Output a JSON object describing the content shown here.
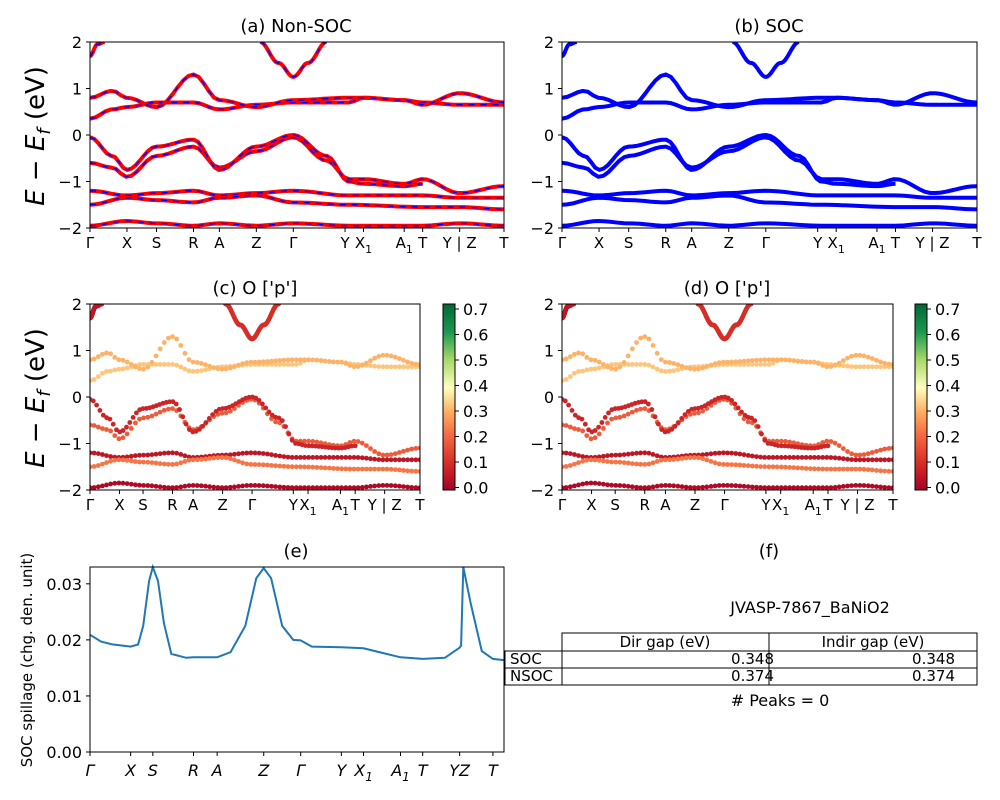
{
  "figure": {
    "ylabel_main": "E − E_f (eV)",
    "ylabel_main_parts": {
      "base": "E − E",
      "sub": "f",
      "unit": " (eV)"
    }
  },
  "band_ticks": [
    {
      "label": "Γ",
      "x": 0
    },
    {
      "label": "X",
      "x": 0.5
    },
    {
      "label": "S",
      "x": 0.9
    },
    {
      "label": "R",
      "x": 1.4
    },
    {
      "label": "A",
      "x": 1.75
    },
    {
      "label": "Z",
      "x": 2.25
    },
    {
      "label": "Γ",
      "x": 2.75
    },
    {
      "label": "Y",
      "x": 3.45
    },
    {
      "label": "X",
      "sub": "1",
      "x": 3.7
    },
    {
      "label": "A",
      "sub": "1",
      "x": 4.25
    },
    {
      "label": "T",
      "x": 4.5
    },
    {
      "label": "Y | Z",
      "x": 5.0
    },
    {
      "label": "T",
      "x": 5.6
    }
  ],
  "spill_ticks": [
    {
      "label": "Γ",
      "x": 0
    },
    {
      "label": "X",
      "x": 0.55
    },
    {
      "label": "S",
      "x": 0.85
    },
    {
      "label": "R",
      "x": 1.4
    },
    {
      "label": "A",
      "x": 1.72
    },
    {
      "label": "Z",
      "x": 2.35
    },
    {
      "label": "Γ",
      "x": 2.85
    },
    {
      "label": "Y",
      "x": 3.4
    },
    {
      "label": "X",
      "sub": "1",
      "x": 3.7
    },
    {
      "label": "A",
      "sub": "1",
      "x": 4.2
    },
    {
      "label": "T",
      "x": 4.5
    },
    {
      "label": "YZ",
      "x": 5.0
    },
    {
      "label": "T",
      "x": 5.45
    }
  ],
  "panels": {
    "a": {
      "title": "(a) Non-SOC"
    },
    "b": {
      "title": "(b) SOC"
    },
    "c": {
      "title": "(c)  O ['p']"
    },
    "d": {
      "title": "(d) O ['p']"
    },
    "e": {
      "title": "(e)"
    },
    "f": {
      "title": "(f)"
    }
  },
  "band_yticks": [
    "2",
    "1",
    "0",
    "−1",
    "−2"
  ],
  "colorbar_ticks": [
    "0.7",
    "0.6",
    "0.5",
    "0.4",
    "0.3",
    "0.2",
    "0.1",
    "0.0"
  ],
  "colors": {
    "nonsoc_line": "#ff0000",
    "nonsoc_dash": "#0000ff",
    "soc_line": "#0000ff",
    "spillage_line": "#1f77b4",
    "cmap_low": "#a50026",
    "cmap_mid": "#ffffbf",
    "cmap_high": "#006837"
  },
  "table": {
    "title": "JVASP-7867_BaNiO2",
    "col_labels": [
      "Dir gap (eV)",
      "Indir gap (eV)"
    ],
    "rows": [
      {
        "label": "SOC",
        "dir": "0.348",
        "indir": "0.348"
      },
      {
        "label": "NSOC",
        "dir": "0.374",
        "indir": "0.374"
      }
    ],
    "peaks": "# Peaks = 0"
  },
  "chart_data": [
    {
      "type": "line",
      "title": "(a) Non-SOC",
      "ylabel": "E − E_f (eV)",
      "ylim": [
        -2,
        2
      ],
      "xlim": [
        0,
        5.6
      ],
      "series": [
        {
          "x": [
            0,
            0.3,
            0.5,
            0.9,
            1.4,
            1.75,
            2.25,
            2.75,
            3.2,
            3.5,
            3.7,
            4.25,
            4.5,
            5.0,
            5.6
          ],
          "y": [
            -0.6,
            -0.7,
            -0.9,
            -0.45,
            -0.25,
            -0.7,
            -0.35,
            -0.05,
            -0.55,
            -0.95,
            -0.95,
            -1.05,
            -0.95,
            -1.25,
            -1.1
          ]
        },
        {
          "x": [
            0,
            0.3,
            0.5,
            0.9,
            1.4,
            1.75,
            2.25,
            2.75,
            3.2,
            3.5,
            3.7,
            4.25,
            4.5
          ],
          "y": [
            -0.05,
            -0.45,
            -0.75,
            -0.25,
            -0.1,
            -0.75,
            -0.25,
            0.0,
            -0.45,
            -1.0,
            -1.05,
            -1.1,
            -1.05
          ]
        },
        {
          "x": [
            0,
            0.3,
            0.5,
            0.9,
            1.4,
            1.75,
            2.25,
            2.75,
            3.5,
            3.7,
            4.25,
            4.5,
            5.0,
            5.6
          ],
          "y": [
            0.35,
            0.55,
            0.6,
            0.7,
            0.7,
            0.55,
            0.65,
            0.7,
            0.7,
            0.8,
            0.75,
            0.7,
            0.65,
            0.65
          ]
        },
        {
          "x": [
            0,
            0.3,
            0.5,
            0.9,
            1.4,
            1.75,
            2.25,
            2.75,
            3.5,
            3.7,
            4.25,
            4.5,
            5.0,
            5.6
          ],
          "y": [
            0.8,
            0.95,
            0.8,
            0.6,
            1.3,
            0.75,
            0.6,
            0.75,
            0.8,
            0.8,
            0.75,
            0.65,
            0.9,
            0.7
          ]
        },
        {
          "x": [
            0,
            0.5,
            0.9,
            1.4,
            1.75,
            2.25,
            2.75,
            3.5,
            4.5,
            5.0,
            5.6
          ],
          "y": [
            -1.2,
            -1.3,
            -1.25,
            -1.2,
            -1.3,
            -1.25,
            -1.2,
            -1.3,
            -1.3,
            -1.35,
            -1.35
          ]
        },
        {
          "x": [
            0,
            0.5,
            0.9,
            1.4,
            1.75,
            2.25,
            2.75,
            3.5,
            4.5,
            5.0,
            5.6
          ],
          "y": [
            -1.5,
            -1.35,
            -1.4,
            -1.45,
            -1.35,
            -1.3,
            -1.45,
            -1.5,
            -1.55,
            -1.55,
            -1.6
          ]
        },
        {
          "x": [
            0,
            0.5,
            0.9,
            1.4,
            1.75,
            2.25,
            2.75,
            3.5,
            4.5,
            5.0,
            5.6
          ],
          "y": [
            -1.95,
            -1.85,
            -1.9,
            -1.95,
            -1.9,
            -1.95,
            -1.9,
            -1.95,
            -1.95,
            -1.9,
            -1.95
          ]
        },
        {
          "x": [
            2.3,
            2.55,
            2.75,
            2.95,
            3.2
          ],
          "y": [
            2.0,
            1.55,
            1.25,
            1.55,
            2.0
          ]
        },
        {
          "x": [
            0,
            0.1,
            0.2
          ],
          "y": [
            1.7,
            1.95,
            2.0
          ]
        }
      ]
    },
    {
      "type": "line",
      "title": "(b) SOC",
      "ylim": [
        -2,
        2
      ],
      "xlim": [
        0,
        5.6
      ]
    },
    {
      "type": "scatter",
      "title": "(c)  O ['p']",
      "ylabel": "E − E_f (eV)",
      "ylim": [
        -2,
        2
      ],
      "colorbar_range": [
        0,
        0.7
      ]
    },
    {
      "type": "scatter",
      "title": "(d) O ['p']",
      "ylim": [
        -2,
        2
      ],
      "colorbar_range": [
        0,
        0.7
      ]
    },
    {
      "type": "line",
      "title": "(e)",
      "ylabel": "SOC spillage (chg. den. unit)",
      "ylim": [
        0,
        0.033
      ],
      "xlim": [
        0,
        5.6
      ],
      "yticks": [
        "0.00",
        "0.01",
        "0.02",
        "0.03"
      ],
      "x": [
        0,
        0.15,
        0.3,
        0.55,
        0.65,
        0.72,
        0.8,
        0.85,
        0.92,
        1.0,
        1.1,
        1.3,
        1.4,
        1.72,
        1.9,
        2.1,
        2.25,
        2.35,
        2.45,
        2.6,
        2.75,
        2.85,
        3.0,
        3.4,
        3.7,
        4.2,
        4.5,
        4.8,
        5.0,
        5.02,
        5.05,
        5.15,
        5.3,
        5.45,
        5.6
      ],
      "y": [
        0.0209,
        0.0197,
        0.0192,
        0.0188,
        0.0192,
        0.0225,
        0.0305,
        0.033,
        0.0305,
        0.023,
        0.0175,
        0.0168,
        0.0169,
        0.0169,
        0.0178,
        0.0225,
        0.031,
        0.0328,
        0.031,
        0.0225,
        0.02,
        0.0199,
        0.0188,
        0.0187,
        0.0185,
        0.0169,
        0.0166,
        0.0168,
        0.0186,
        0.019,
        0.033,
        0.0265,
        0.018,
        0.0166,
        0.0164
      ]
    }
  ]
}
